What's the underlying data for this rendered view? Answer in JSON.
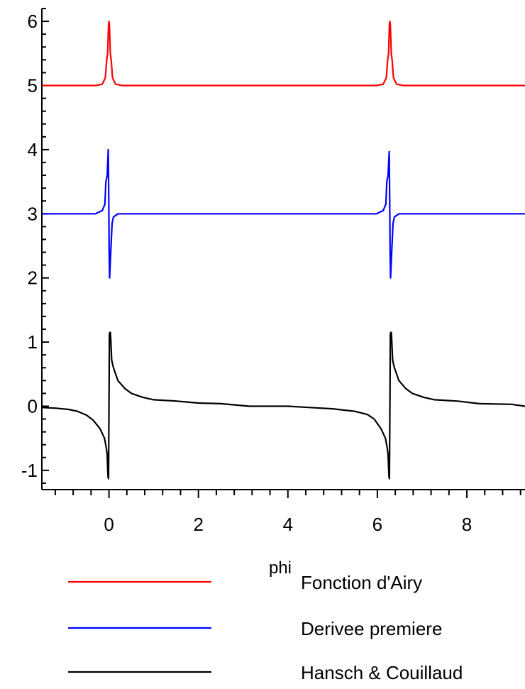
{
  "chart_data": {
    "type": "line",
    "title": "",
    "xlabel": "phi",
    "ylabel": "",
    "xlim": [
      -1.5,
      9.3
    ],
    "ylim": [
      -1.3,
      6.2
    ],
    "x_ticks": [
      0,
      2,
      4,
      6,
      8
    ],
    "x_tick_labels": [
      "0",
      "2",
      "4",
      "6",
      "8"
    ],
    "y_ticks": [
      -1,
      0,
      1,
      2,
      3,
      4,
      5,
      6
    ],
    "y_tick_labels": [
      "-1",
      "0",
      "1",
      "2",
      "3",
      "4",
      "5",
      "6"
    ],
    "grid": false,
    "legend_position": "bottom",
    "series": [
      {
        "name": "Fonction d'Airy",
        "color": "#ff0000",
        "points": [
          [
            -1.5,
            5.0
          ],
          [
            -0.3,
            5.0
          ],
          [
            -0.15,
            5.02
          ],
          [
            -0.08,
            5.12
          ],
          [
            -0.05,
            5.4
          ],
          [
            -0.03,
            5.5
          ],
          [
            -0.01,
            5.95
          ],
          [
            0.0,
            6.0
          ],
          [
            0.01,
            5.95
          ],
          [
            0.03,
            5.5
          ],
          [
            0.05,
            5.4
          ],
          [
            0.08,
            5.12
          ],
          [
            0.15,
            5.02
          ],
          [
            0.3,
            5.0
          ],
          [
            5.98,
            5.0
          ],
          [
            6.13,
            5.02
          ],
          [
            6.2,
            5.12
          ],
          [
            6.23,
            5.4
          ],
          [
            6.25,
            5.5
          ],
          [
            6.27,
            5.95
          ],
          [
            6.28,
            6.0
          ],
          [
            6.29,
            5.95
          ],
          [
            6.31,
            5.5
          ],
          [
            6.33,
            5.4
          ],
          [
            6.36,
            5.12
          ],
          [
            6.43,
            5.02
          ],
          [
            6.58,
            5.0
          ],
          [
            9.3,
            5.0
          ]
        ]
      },
      {
        "name": "Derivee premiere",
        "color": "#0000ff",
        "points": [
          [
            -1.5,
            3.0
          ],
          [
            -0.3,
            3.0
          ],
          [
            -0.15,
            3.05
          ],
          [
            -0.09,
            3.15
          ],
          [
            -0.07,
            3.5
          ],
          [
            -0.04,
            3.6
          ],
          [
            -0.015,
            4.0
          ],
          [
            -0.005,
            3.2
          ],
          [
            0.005,
            2.4
          ],
          [
            0.015,
            2.0
          ],
          [
            0.04,
            2.4
          ],
          [
            0.07,
            2.85
          ],
          [
            0.1,
            2.95
          ],
          [
            0.2,
            3.0
          ],
          [
            0.3,
            3.0
          ],
          [
            5.98,
            3.0
          ],
          [
            6.13,
            3.05
          ],
          [
            6.19,
            3.15
          ],
          [
            6.21,
            3.5
          ],
          [
            6.24,
            3.6
          ],
          [
            6.265,
            3.97
          ],
          [
            6.275,
            3.2
          ],
          [
            6.285,
            2.4
          ],
          [
            6.295,
            2.0
          ],
          [
            6.32,
            2.4
          ],
          [
            6.35,
            2.85
          ],
          [
            6.38,
            2.95
          ],
          [
            6.48,
            3.0
          ],
          [
            6.58,
            3.0
          ],
          [
            9.3,
            3.0
          ]
        ]
      },
      {
        "name": "Hansch & Couillaud",
        "color": "#000000",
        "points": [
          [
            -1.5,
            -0.02
          ],
          [
            -1.2,
            -0.03
          ],
          [
            -0.9,
            -0.05
          ],
          [
            -0.7,
            -0.08
          ],
          [
            -0.5,
            -0.14
          ],
          [
            -0.35,
            -0.22
          ],
          [
            -0.2,
            -0.35
          ],
          [
            -0.1,
            -0.5
          ],
          [
            -0.06,
            -0.65
          ],
          [
            -0.04,
            -0.75
          ],
          [
            -0.03,
            -0.95
          ],
          [
            -0.02,
            -1.1
          ],
          [
            -0.01,
            -1.13
          ],
          [
            0.0,
            0.0
          ],
          [
            0.01,
            1.12
          ],
          [
            0.02,
            1.15
          ],
          [
            0.03,
            1.15
          ],
          [
            0.04,
            1.05
          ],
          [
            0.06,
            0.72
          ],
          [
            0.1,
            0.6
          ],
          [
            0.2,
            0.4
          ],
          [
            0.35,
            0.28
          ],
          [
            0.5,
            0.2
          ],
          [
            0.75,
            0.14
          ],
          [
            1.0,
            0.1
          ],
          [
            1.5,
            0.08
          ],
          [
            2.0,
            0.05
          ],
          [
            2.5,
            0.04
          ],
          [
            3.14,
            0.0
          ],
          [
            4.0,
            0.0
          ],
          [
            4.5,
            -0.02
          ],
          [
            5.0,
            -0.04
          ],
          [
            5.5,
            -0.08
          ],
          [
            5.78,
            -0.13
          ],
          [
            5.93,
            -0.2
          ],
          [
            6.08,
            -0.35
          ],
          [
            6.18,
            -0.5
          ],
          [
            6.22,
            -0.65
          ],
          [
            6.24,
            -0.75
          ],
          [
            6.25,
            -0.95
          ],
          [
            6.26,
            -1.1
          ],
          [
            6.27,
            -1.13
          ],
          [
            6.28,
            0.0
          ],
          [
            6.29,
            1.12
          ],
          [
            6.3,
            1.15
          ],
          [
            6.31,
            1.15
          ],
          [
            6.32,
            1.05
          ],
          [
            6.34,
            0.72
          ],
          [
            6.38,
            0.6
          ],
          [
            6.48,
            0.4
          ],
          [
            6.63,
            0.28
          ],
          [
            6.78,
            0.2
          ],
          [
            7.03,
            0.14
          ],
          [
            7.28,
            0.1
          ],
          [
            7.78,
            0.08
          ],
          [
            8.28,
            0.04
          ],
          [
            9.0,
            0.03
          ],
          [
            9.3,
            0.0
          ]
        ]
      }
    ]
  }
}
